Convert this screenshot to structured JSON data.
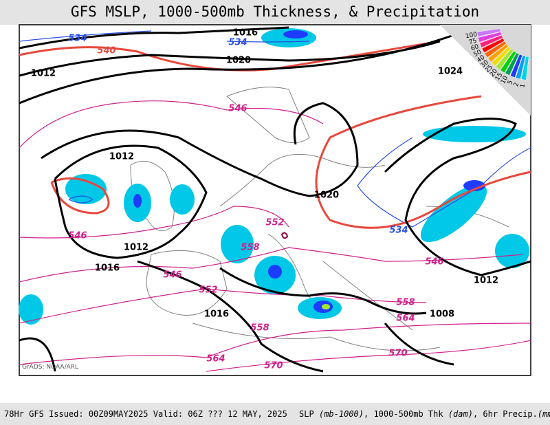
{
  "header": {
    "title": "GFS MSLP, 1000-500mb Thickness, & Precipitation"
  },
  "map": {
    "credit": "GrADS: NOAA/ARL",
    "pressure_labels": [
      1016,
      1020,
      1012,
      1024,
      1012,
      1020,
      1012,
      1016,
      1016,
      1012,
      1008
    ],
    "thickness_labels": [
      534,
      540,
      534,
      546,
      546,
      546,
      552,
      558,
      552,
      558,
      564,
      570,
      570,
      534,
      546,
      558,
      564
    ],
    "legend": [
      {
        "label": "100",
        "color": "#c878ff"
      },
      {
        "label": "75",
        "color": "#e040e0"
      },
      {
        "label": "60",
        "color": "#ff2080"
      },
      {
        "label": "50",
        "color": "#ff0000"
      },
      {
        "label": "40",
        "color": "#ff6400"
      },
      {
        "label": "30",
        "color": "#ffa000"
      },
      {
        "label": "25",
        "color": "#f0dc00"
      },
      {
        "label": "20",
        "color": "#a0e632"
      },
      {
        "label": "15",
        "color": "#00d200"
      },
      {
        "label": "10",
        "color": "#00a050"
      },
      {
        "label": "5",
        "color": "#1e3cff"
      },
      {
        "label": "2",
        "color": "#00a0ff"
      },
      {
        "label": "1",
        "color": "#00d2e6"
      }
    ]
  },
  "footer": {
    "issued": "78Hr GFS Issued: 00Z09MAY2025 Valid: 06Z ??? 12 MAY, 2025",
    "slp": "SLP",
    "slp_unit": "(mb-1000)",
    "thk": ", 1000-500mb Thk",
    "thk_unit": "(dam)",
    "precip": ", 6hr Precip.",
    "precip_unit": "(mm)"
  }
}
